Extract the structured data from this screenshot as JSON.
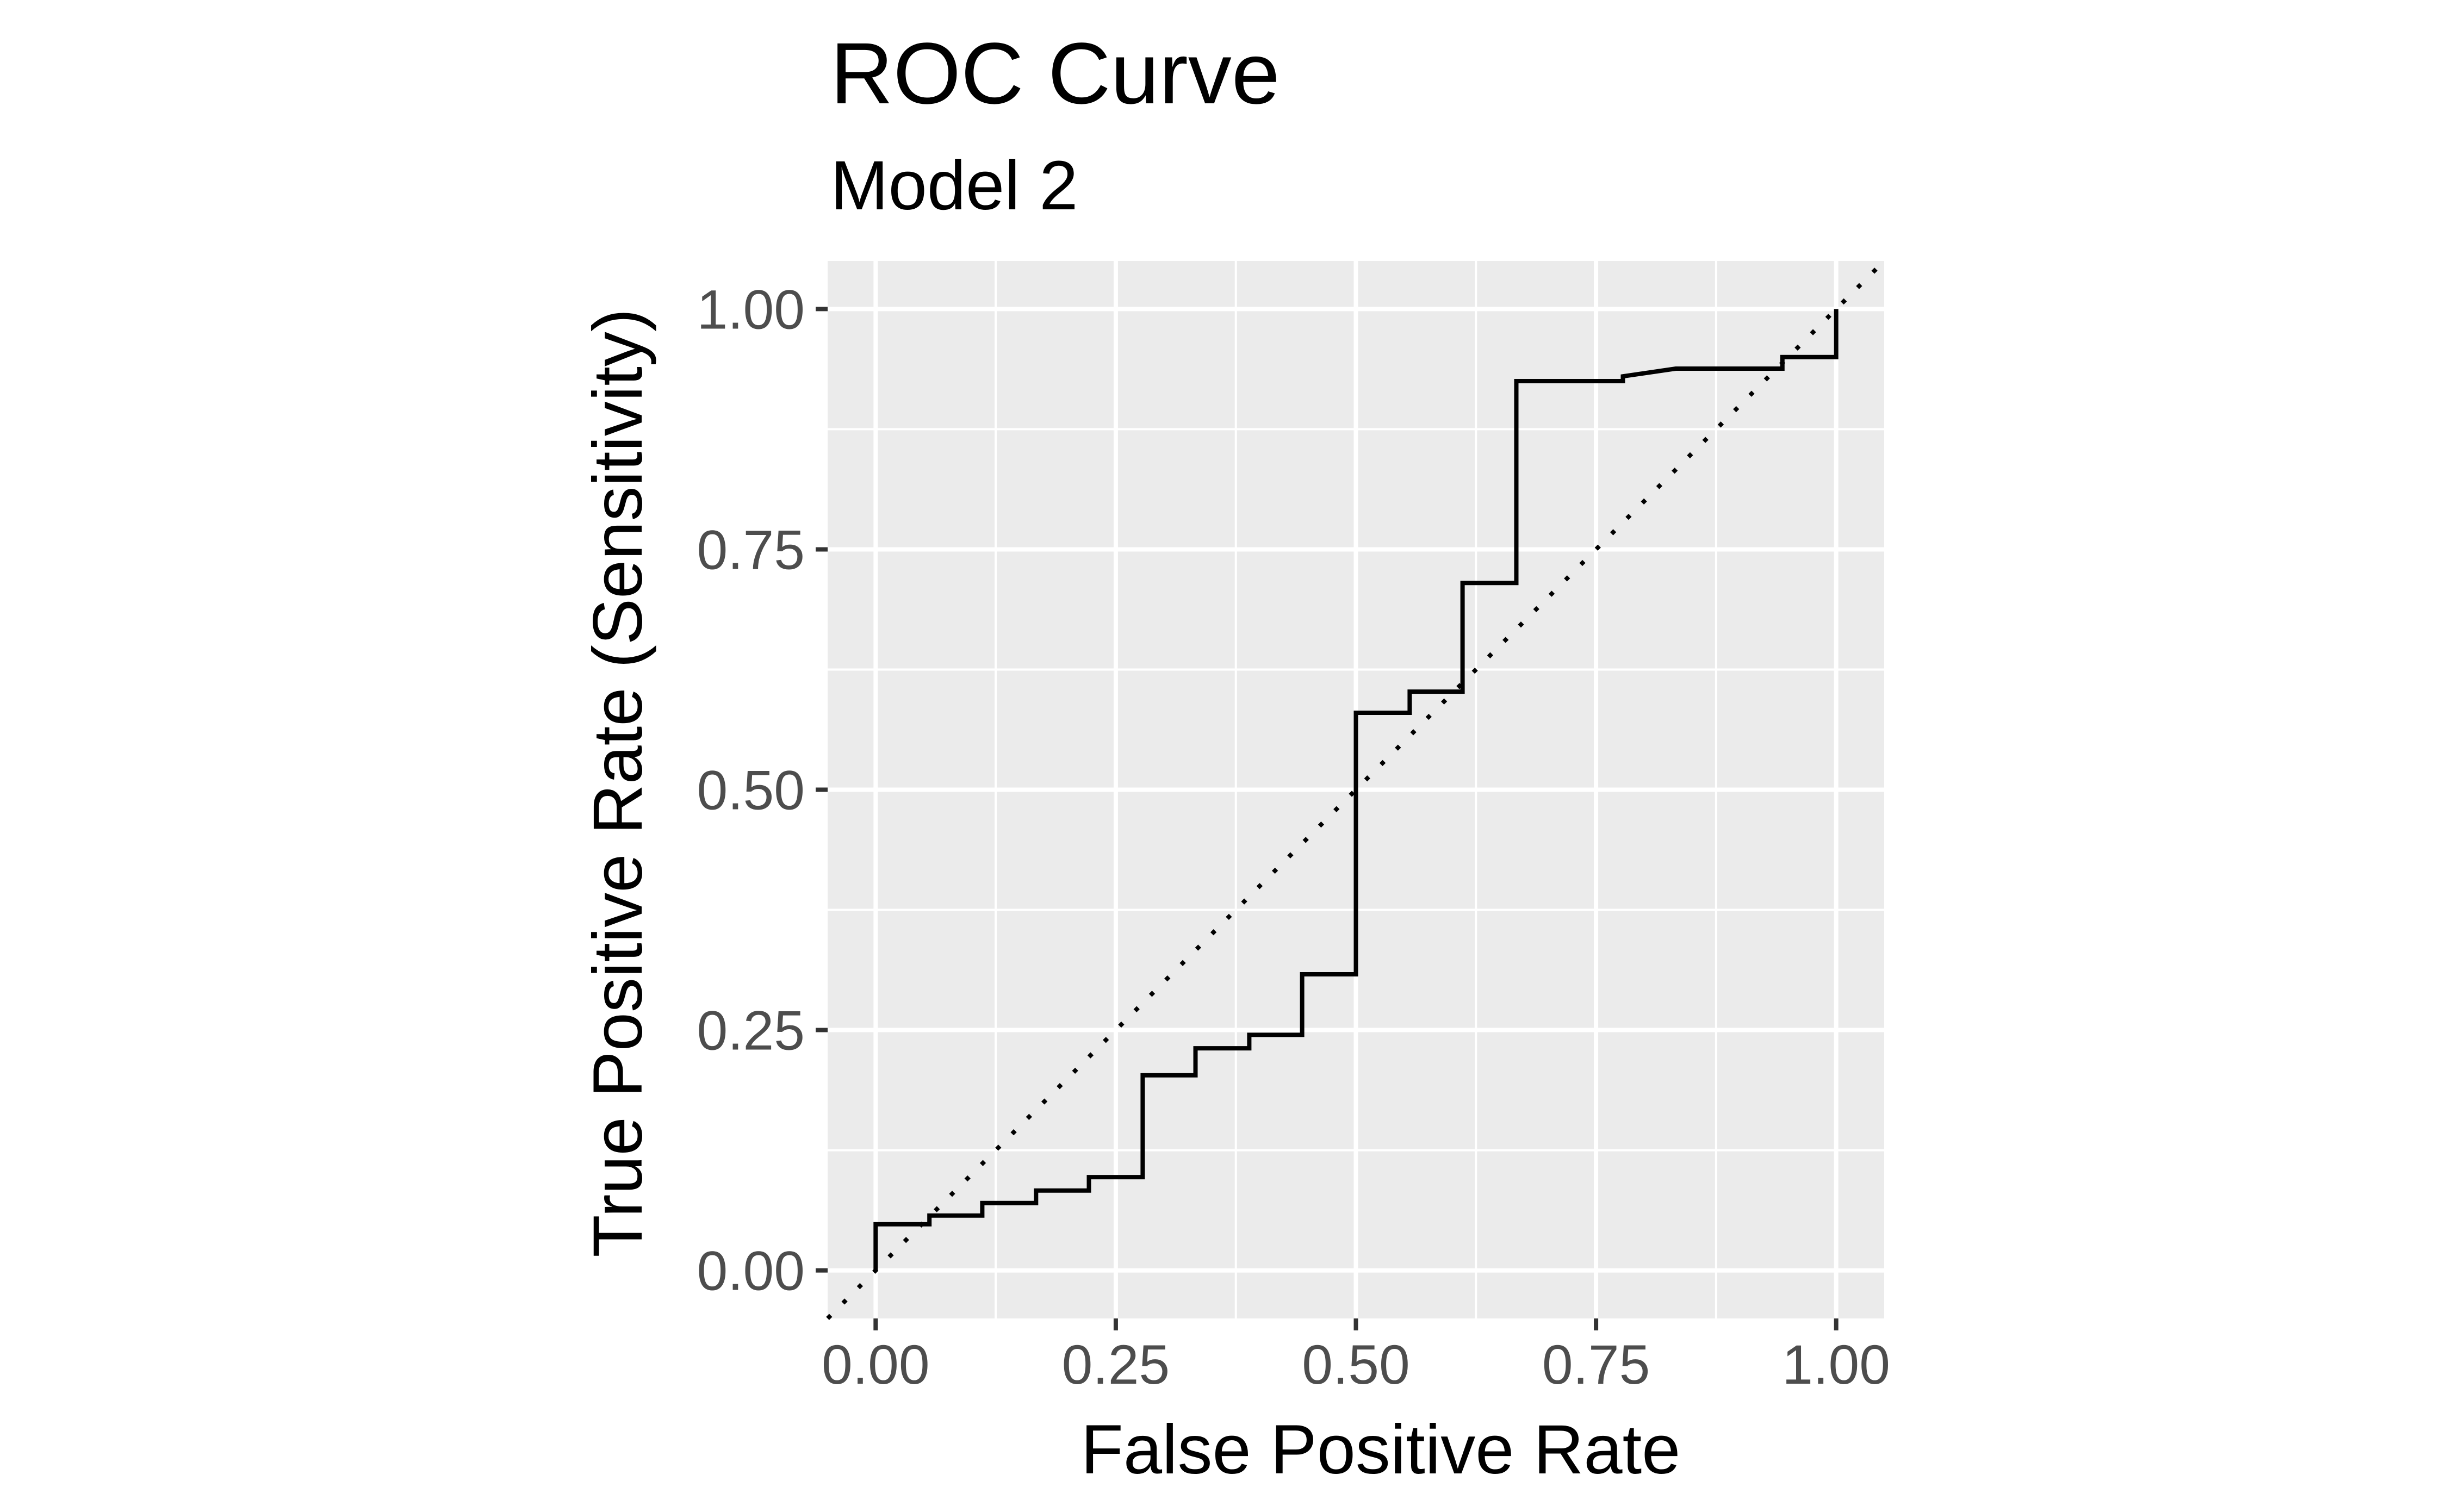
{
  "chart_data": {
    "type": "line",
    "title": "ROC Curve",
    "subtitle": "Model 2",
    "xlabel": "False Positive Rate",
    "ylabel": "True Positive Rate (Sensitivity)",
    "xlim": [
      -0.05,
      1.05
    ],
    "ylim": [
      -0.05,
      1.05
    ],
    "x_ticks": [
      "0.00",
      "0.25",
      "0.50",
      "0.75",
      "1.00"
    ],
    "y_ticks": [
      "0.00",
      "0.25",
      "0.50",
      "0.75",
      "1.00"
    ],
    "grid": true,
    "background": "#ebebeb",
    "series": [
      {
        "style": "solid",
        "color": "#000000",
        "x": [
          0.0,
          0.0,
          0.056,
          0.056,
          0.111,
          0.111,
          0.167,
          0.167,
          0.222,
          0.222,
          0.278,
          0.278,
          0.333,
          0.333,
          0.389,
          0.389,
          0.444,
          0.444,
          0.5,
          0.5,
          0.556,
          0.556,
          0.611,
          0.611,
          0.667,
          0.667,
          0.778,
          0.778,
          0.833,
          0.833,
          0.944,
          0.944,
          1.0,
          1.0
        ],
        "y": [
          0.0,
          0.048,
          0.048,
          0.057,
          0.057,
          0.07,
          0.07,
          0.083,
          0.083,
          0.097,
          0.097,
          0.203,
          0.203,
          0.231,
          0.231,
          0.245,
          0.245,
          0.308,
          0.308,
          0.58,
          0.58,
          0.602,
          0.602,
          0.715,
          0.715,
          0.925,
          0.925,
          0.93,
          0.938,
          0.938,
          0.938,
          0.95,
          0.95,
          1.0
        ]
      },
      {
        "style": "dotted",
        "color": "#000000",
        "x": [
          -0.05,
          1.05
        ],
        "y": [
          -0.05,
          1.05
        ]
      }
    ]
  }
}
